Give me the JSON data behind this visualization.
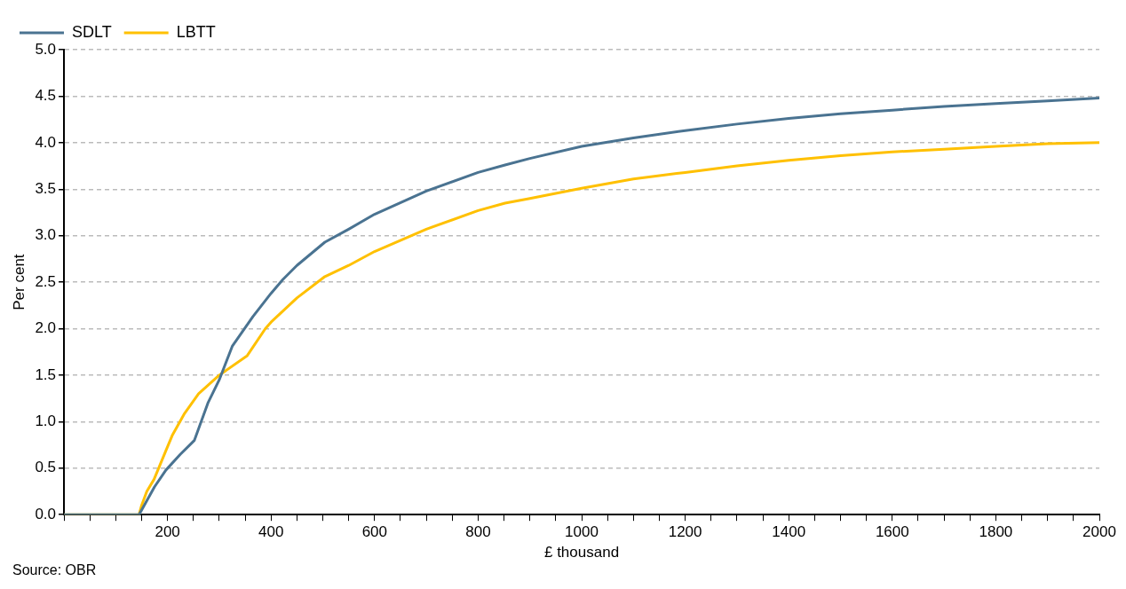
{
  "chart_data": {
    "type": "line",
    "xlabel": "£ thousand",
    "ylabel": "Per cent",
    "annotations": [
      "Source: OBR"
    ],
    "xlim": [
      0,
      2000
    ],
    "xticks": [
      {
        "value": 0,
        "label": null
      },
      {
        "value": 50,
        "label": null
      },
      {
        "value": 100,
        "label": null
      },
      {
        "value": 150,
        "label": null
      },
      200,
      {
        "value": 250,
        "label": null
      },
      {
        "value": 300,
        "label": null
      },
      {
        "value": 350,
        "label": null
      },
      400,
      {
        "value": 450,
        "label": null
      },
      {
        "value": 500,
        "label": null
      },
      {
        "value": 550,
        "label": null
      },
      600,
      {
        "value": 650,
        "label": null
      },
      {
        "value": 700,
        "label": null
      },
      {
        "value": 750,
        "label": null
      },
      800,
      {
        "value": 850,
        "label": null
      },
      {
        "value": 900,
        "label": null
      },
      {
        "value": 950,
        "label": null
      },
      1000,
      {
        "value": 1050,
        "label": null
      },
      {
        "value": 1100,
        "label": null
      },
      {
        "value": 1150,
        "label": null
      },
      1200,
      {
        "value": 1250,
        "label": null
      },
      {
        "value": 1300,
        "label": null
      },
      {
        "value": 1350,
        "label": null
      },
      1400,
      {
        "value": 1450,
        "label": null
      },
      {
        "value": 1500,
        "label": null
      },
      {
        "value": 1550,
        "label": null
      },
      1600,
      {
        "value": 1650,
        "label": null
      },
      {
        "value": 1700,
        "label": null
      },
      {
        "value": 1750,
        "label": null
      },
      1800,
      {
        "value": 1850,
        "label": null
      },
      {
        "value": 1900,
        "label": null
      },
      {
        "value": 1950,
        "label": null
      },
      2000
    ],
    "ylim": [
      0,
      5
    ],
    "yticks": [
      {
        "value": 0,
        "label": "0.0"
      },
      {
        "value": 0.5,
        "label": "0.5"
      },
      {
        "value": 1,
        "label": "1.0"
      },
      {
        "value": 1.5,
        "label": "1.5"
      },
      {
        "value": 2,
        "label": "2.0"
      },
      {
        "value": 2.5,
        "label": "2.5"
      },
      {
        "value": 3,
        "label": "3.0"
      },
      {
        "value": 3.5,
        "label": "3.5"
      },
      {
        "value": 4,
        "label": "4.0"
      },
      {
        "value": 4.5,
        "label": "4.5"
      },
      {
        "value": 5,
        "label": "5.0"
      }
    ],
    "grid": "y",
    "legend": "top left",
    "marker": "none",
    "line_style": "solid",
    "series": [
      {
        "name": "SDLT",
        "color": "#4a7391",
        "x": [
          0,
          145,
          150,
          175,
          197,
          225,
          252,
          278,
          300,
          325,
          365,
          400,
          423,
          450,
          504,
          550,
          600,
          700,
          800,
          852,
          900,
          1000,
          1100,
          1200,
          1300,
          1400,
          1500,
          1600,
          1700,
          1800,
          1900,
          2000
        ],
        "values": [
          0,
          0,
          0.05,
          0.3,
          0.48,
          0.65,
          0.8,
          1.2,
          1.45,
          1.81,
          2.13,
          2.38,
          2.53,
          2.68,
          2.93,
          3.07,
          3.23,
          3.48,
          3.68,
          3.76,
          3.83,
          3.96,
          4.05,
          4.13,
          4.2,
          4.26,
          4.31,
          4.35,
          4.39,
          4.42,
          4.45,
          4.48
        ]
      },
      {
        "name": "LBTT",
        "color": "#ffc000",
        "x": [
          0,
          145,
          150,
          160,
          174,
          197,
          209,
          232,
          260,
          300,
          354,
          389,
          400,
          450,
          504,
          550,
          600,
          700,
          800,
          852,
          900,
          1000,
          1100,
          1200,
          1300,
          1400,
          1500,
          1600,
          1700,
          1800,
          1900,
          2000
        ],
        "values": [
          0,
          0,
          0.1,
          0.25,
          0.38,
          0.69,
          0.85,
          1.08,
          1.3,
          1.5,
          1.71,
          2.0,
          2.07,
          2.33,
          2.56,
          2.68,
          2.83,
          3.07,
          3.27,
          3.35,
          3.4,
          3.51,
          3.61,
          3.68,
          3.75,
          3.81,
          3.86,
          3.9,
          3.93,
          3.96,
          3.99,
          4.0
        ]
      }
    ]
  }
}
